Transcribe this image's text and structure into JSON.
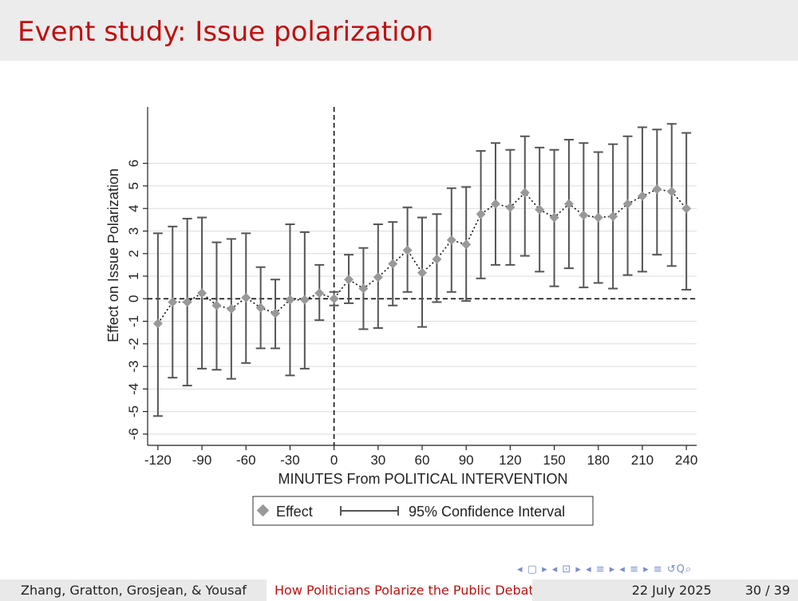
{
  "slide": {
    "title": "Event study: Issue polarization"
  },
  "footer": {
    "authors": "Zhang, Gratton, Grosjean, & Yousaf",
    "talk_title": "How Politicians Polarize the Public Debate",
    "date": "22 July 2025",
    "page": "30 / 39"
  },
  "nav_icons": [
    "nav-arrow-left-right-icon",
    "nav-frame-icon",
    "nav-subsection-icon",
    "nav-section-icon",
    "nav-align-icon",
    "nav-search-icon"
  ],
  "nav_symbols": "◂ ▢ ▸  ◂ ⊡ ▸  ◂ ≡ ▸  ◂ ≡ ▸   ≡   ↺Q⌕",
  "colors": {
    "accent": "#bf1010",
    "marker": "#999999",
    "ci": "#555555"
  },
  "chart_data": {
    "type": "scatter",
    "xlabel": "MINUTES From POLITICAL INTERVENTION",
    "ylabel": "Effect on Issue Polarization",
    "xlim": [
      -127,
      247
    ],
    "ylim": [
      -6.5,
      8.5
    ],
    "xticks": [
      -120,
      -90,
      -60,
      -30,
      0,
      30,
      60,
      90,
      120,
      150,
      180,
      210,
      240
    ],
    "yticks": [
      -6,
      -5,
      -4,
      -3,
      -2,
      -1,
      0,
      1,
      2,
      3,
      4,
      5,
      6
    ],
    "grid": true,
    "reference_lines": {
      "x": 0,
      "y": 0,
      "style": "dashed"
    },
    "legend": {
      "position": "bottom",
      "entries": [
        "Effect",
        "95% Confidence Interval"
      ]
    },
    "x": [
      -120,
      -110,
      -100,
      -90,
      -80,
      -70,
      -60,
      -50,
      -40,
      -30,
      -20,
      -10,
      0,
      10,
      20,
      30,
      40,
      50,
      60,
      70,
      80,
      90,
      100,
      110,
      120,
      130,
      140,
      150,
      160,
      170,
      180,
      190,
      200,
      210,
      220,
      230,
      240
    ],
    "effect": [
      -1.1,
      -0.15,
      -0.15,
      0.25,
      -0.3,
      -0.45,
      0.05,
      -0.4,
      -0.65,
      -0.05,
      -0.05,
      0.25,
      0.0,
      0.85,
      0.45,
      0.95,
      1.55,
      2.15,
      1.15,
      1.75,
      2.6,
      2.4,
      3.75,
      4.2,
      4.05,
      4.7,
      3.95,
      3.6,
      4.2,
      3.7,
      3.6,
      3.65,
      4.2,
      4.55,
      4.85,
      4.75,
      4.0
    ],
    "ci_low": [
      -5.2,
      -3.5,
      -3.85,
      -3.1,
      -3.15,
      -3.55,
      -2.85,
      -2.2,
      -2.2,
      -3.4,
      -3.1,
      -0.95,
      -0.3,
      -0.2,
      -1.35,
      -1.3,
      -0.3,
      0.3,
      -1.25,
      -0.15,
      0.3,
      -0.1,
      0.9,
      1.5,
      1.5,
      1.9,
      1.2,
      0.55,
      1.35,
      0.5,
      0.7,
      0.45,
      1.05,
      1.2,
      1.95,
      1.45,
      0.4
    ],
    "ci_high": [
      2.9,
      3.2,
      3.55,
      3.6,
      2.5,
      2.65,
      2.9,
      1.4,
      0.85,
      3.3,
      2.95,
      1.5,
      0.3,
      1.95,
      2.25,
      3.3,
      3.4,
      4.05,
      3.6,
      3.75,
      4.9,
      4.95,
      6.55,
      6.9,
      6.6,
      7.2,
      6.7,
      6.6,
      7.05,
      6.9,
      6.5,
      6.85,
      7.2,
      7.6,
      7.5,
      7.75,
      7.35
    ]
  }
}
